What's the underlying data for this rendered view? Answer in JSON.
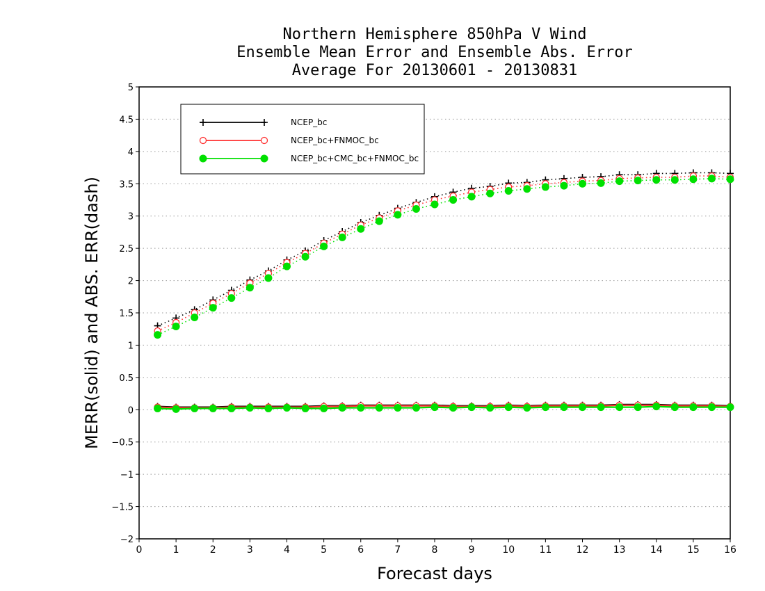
{
  "chart_data": {
    "type": "line",
    "title": [
      "Northern Hemisphere 850hPa V Wind",
      "Ensemble Mean Error and Ensemble Abs. Error",
      "Average For 20130601 - 20130831"
    ],
    "xlabel": "Forecast days",
    "ylabel": "MERR(solid) and ABS. ERR(dash)",
    "xlim": [
      0,
      16
    ],
    "ylim": [
      -2,
      5
    ],
    "xticks": [
      0,
      1,
      2,
      3,
      4,
      5,
      6,
      7,
      8,
      9,
      10,
      11,
      12,
      13,
      14,
      15,
      16
    ],
    "yticks": [
      -2,
      -1.5,
      -1,
      -0.5,
      0,
      0.5,
      1,
      1.5,
      2,
      2.5,
      3,
      3.5,
      4,
      4.5,
      5
    ],
    "grid": "horizontal dotted",
    "legend_position": "top-left",
    "x": [
      0.5,
      1,
      1.5,
      2,
      2.5,
      3,
      3.5,
      4,
      4.5,
      5,
      5.5,
      6,
      6.5,
      7,
      7.5,
      8,
      8.5,
      9,
      9.5,
      10,
      10.5,
      11,
      11.5,
      12,
      12.5,
      13,
      13.5,
      14,
      14.5,
      15,
      15.5,
      16
    ],
    "series": [
      {
        "name": "NCEP_bc",
        "color": "#000000",
        "marker": "plus",
        "abs_err": [
          1.3,
          1.42,
          1.55,
          1.7,
          1.85,
          2.01,
          2.15,
          2.32,
          2.46,
          2.62,
          2.76,
          2.9,
          3.01,
          3.12,
          3.21,
          3.3,
          3.37,
          3.43,
          3.46,
          3.51,
          3.52,
          3.56,
          3.58,
          3.6,
          3.61,
          3.64,
          3.64,
          3.66,
          3.66,
          3.67,
          3.67,
          3.66
        ],
        "mean_err": [
          0.05,
          0.04,
          0.04,
          0.04,
          0.05,
          0.05,
          0.05,
          0.05,
          0.05,
          0.06,
          0.06,
          0.07,
          0.07,
          0.07,
          0.07,
          0.07,
          0.06,
          0.06,
          0.06,
          0.07,
          0.06,
          0.07,
          0.07,
          0.07,
          0.07,
          0.08,
          0.08,
          0.08,
          0.07,
          0.07,
          0.07,
          0.06
        ]
      },
      {
        "name": "NCEP_bc+FNMOC_bc",
        "color": "#ff3030",
        "marker": "open-circle",
        "abs_err": [
          1.22,
          1.35,
          1.5,
          1.65,
          1.8,
          1.96,
          2.11,
          2.28,
          2.42,
          2.58,
          2.72,
          2.86,
          2.97,
          3.08,
          3.17,
          3.25,
          3.31,
          3.37,
          3.41,
          3.45,
          3.47,
          3.5,
          3.52,
          3.54,
          3.55,
          3.58,
          3.59,
          3.6,
          3.6,
          3.62,
          3.62,
          3.6
        ],
        "mean_err": [
          0.04,
          0.03,
          0.03,
          0.03,
          0.04,
          0.04,
          0.04,
          0.04,
          0.04,
          0.05,
          0.05,
          0.06,
          0.06,
          0.06,
          0.06,
          0.06,
          0.05,
          0.05,
          0.05,
          0.06,
          0.05,
          0.06,
          0.06,
          0.06,
          0.06,
          0.07,
          0.07,
          0.07,
          0.06,
          0.06,
          0.06,
          0.05
        ]
      },
      {
        "name": "NCEP_bc+CMC_bc+FNMOC_bc",
        "color": "#00e000",
        "marker": "filled-circle",
        "abs_err": [
          1.16,
          1.29,
          1.43,
          1.58,
          1.73,
          1.89,
          2.04,
          2.22,
          2.37,
          2.53,
          2.67,
          2.8,
          2.92,
          3.02,
          3.11,
          3.18,
          3.25,
          3.3,
          3.35,
          3.39,
          3.42,
          3.45,
          3.47,
          3.5,
          3.51,
          3.54,
          3.55,
          3.56,
          3.56,
          3.57,
          3.58,
          3.57
        ],
        "mean_err": [
          0.02,
          0.01,
          0.02,
          0.02,
          0.02,
          0.03,
          0.02,
          0.03,
          0.02,
          0.02,
          0.03,
          0.03,
          0.03,
          0.03,
          0.03,
          0.04,
          0.03,
          0.04,
          0.03,
          0.04,
          0.03,
          0.04,
          0.04,
          0.04,
          0.04,
          0.04,
          0.04,
          0.05,
          0.04,
          0.04,
          0.04,
          0.04
        ]
      }
    ]
  }
}
